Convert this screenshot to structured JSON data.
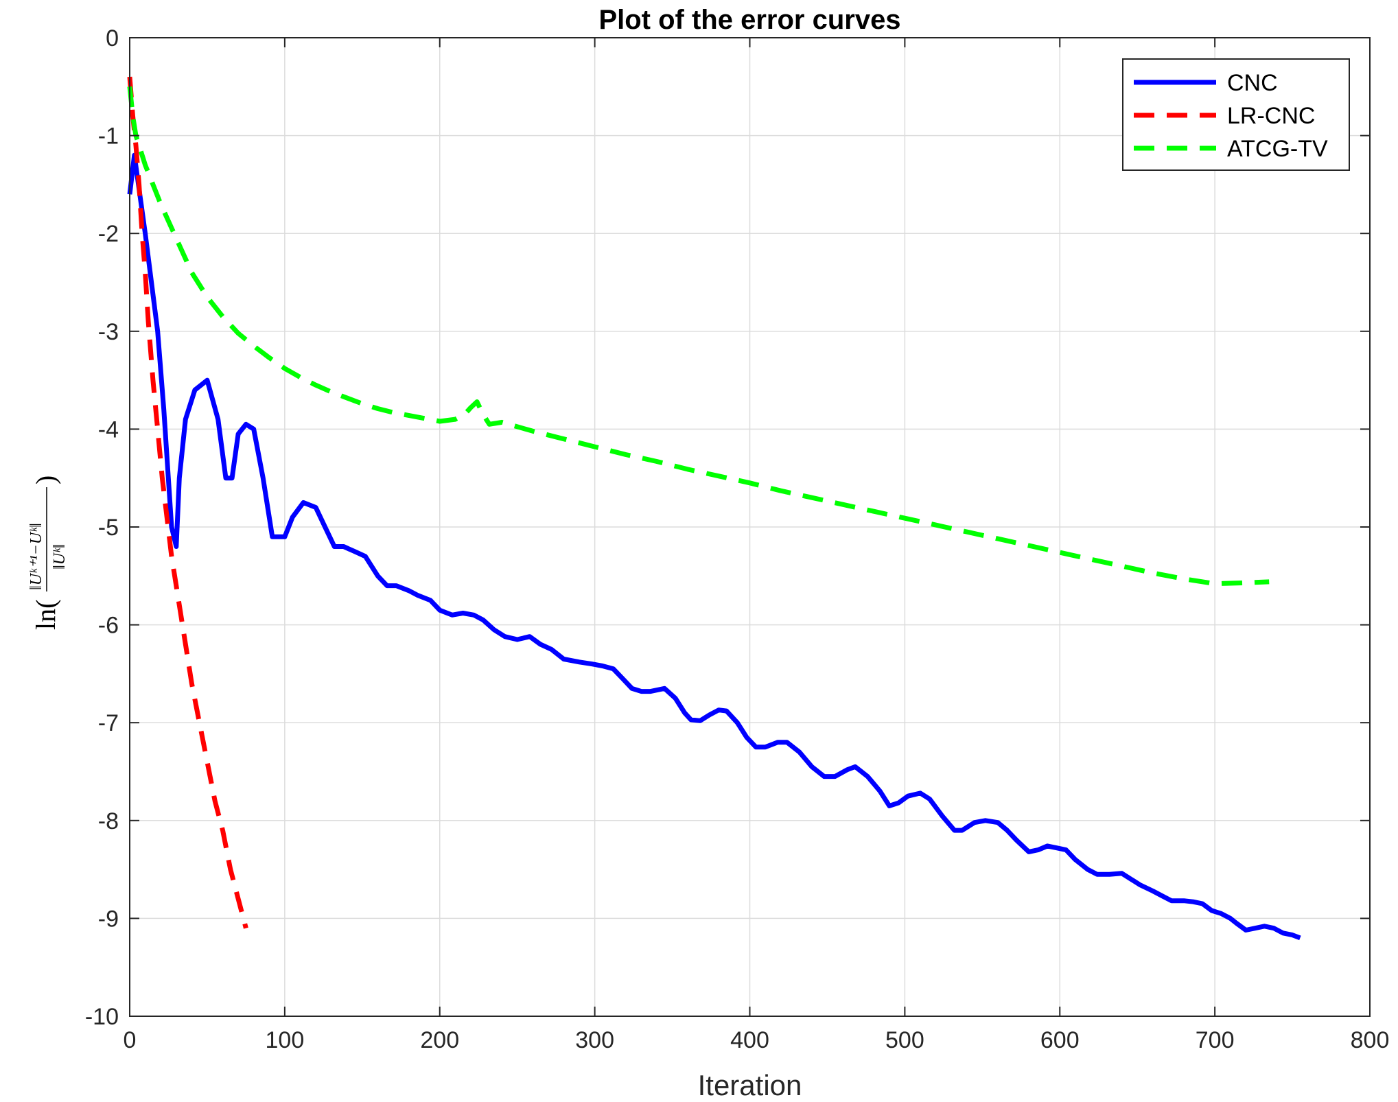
{
  "chart_data": {
    "type": "line",
    "title": "Plot of the error curves",
    "xlabel": "Iteration",
    "ylabel": "ln(‖U^{k+1}−U^k‖_F / ‖U^k‖_F)",
    "xlim": [
      0,
      800
    ],
    "ylim": [
      -10,
      0
    ],
    "xticks": [
      0,
      100,
      200,
      300,
      400,
      500,
      600,
      700,
      800
    ],
    "yticks": [
      0,
      -1,
      -2,
      -3,
      -4,
      -5,
      -6,
      -7,
      -8,
      -9,
      -10
    ],
    "grid": true,
    "legend_position": "top-right",
    "series": [
      {
        "name": "CNC",
        "color": "#0000ff",
        "style": "solid",
        "x": [
          0,
          3,
          10,
          18,
          22,
          27,
          30,
          32,
          36,
          42,
          50,
          57,
          62,
          66,
          70,
          75,
          80,
          86,
          92,
          100,
          105,
          112,
          120,
          126,
          132,
          138,
          145,
          152,
          160,
          166,
          172,
          180,
          186,
          194,
          200,
          208,
          215,
          222,
          228,
          235,
          242,
          250,
          258,
          265,
          272,
          280,
          290,
          298,
          305,
          312,
          318,
          324,
          330,
          336,
          345,
          352,
          358,
          362,
          368,
          374,
          380,
          385,
          392,
          398,
          404,
          410,
          418,
          424,
          432,
          440,
          448,
          455,
          463,
          468,
          476,
          484,
          490,
          496,
          502,
          510,
          516,
          524,
          532,
          537,
          545,
          552,
          560,
          566,
          572,
          580,
          586,
          592,
          598,
          604,
          610,
          618,
          624,
          632,
          640,
          646,
          652,
          660,
          666,
          672,
          680,
          686,
          692,
          698,
          704,
          710,
          714,
          720,
          726,
          732,
          738,
          744,
          750,
          755
        ],
        "y": [
          -1.6,
          -1.2,
          -2.0,
          -3.0,
          -3.8,
          -5.0,
          -5.2,
          -4.5,
          -3.9,
          -3.6,
          -3.5,
          -3.9,
          -4.5,
          -4.5,
          -4.05,
          -3.95,
          -4.0,
          -4.5,
          -5.1,
          -5.1,
          -4.9,
          -4.75,
          -4.8,
          -5.0,
          -5.2,
          -5.2,
          -5.25,
          -5.3,
          -5.5,
          -5.6,
          -5.6,
          -5.65,
          -5.7,
          -5.75,
          -5.85,
          -5.9,
          -5.88,
          -5.9,
          -5.95,
          -6.05,
          -6.12,
          -6.15,
          -6.12,
          -6.2,
          -6.25,
          -6.35,
          -6.38,
          -6.4,
          -6.42,
          -6.45,
          -6.55,
          -6.65,
          -6.68,
          -6.68,
          -6.65,
          -6.75,
          -6.9,
          -6.97,
          -6.98,
          -6.92,
          -6.87,
          -6.88,
          -7.0,
          -7.15,
          -7.25,
          -7.25,
          -7.2,
          -7.2,
          -7.3,
          -7.45,
          -7.55,
          -7.55,
          -7.48,
          -7.45,
          -7.55,
          -7.7,
          -7.85,
          -7.82,
          -7.75,
          -7.72,
          -7.78,
          -7.95,
          -8.1,
          -8.1,
          -8.02,
          -8.0,
          -8.02,
          -8.1,
          -8.2,
          -8.32,
          -8.3,
          -8.26,
          -8.28,
          -8.3,
          -8.4,
          -8.5,
          -8.55,
          -8.55,
          -8.54,
          -8.6,
          -8.66,
          -8.72,
          -8.77,
          -8.82,
          -8.82,
          -8.83,
          -8.85,
          -8.92,
          -8.95,
          -9.0,
          -9.05,
          -9.12,
          -9.1,
          -9.08,
          -9.1,
          -9.15,
          -9.17,
          -9.2
        ]
      },
      {
        "name": "LR-CNC",
        "color": "#ff0000",
        "style": "dashed",
        "x": [
          0,
          2,
          4,
          6,
          8,
          10,
          12,
          15,
          18,
          21,
          24,
          27,
          30,
          35,
          40,
          45,
          50,
          55,
          60,
          65,
          70,
          75
        ],
        "y": [
          -0.4,
          -0.8,
          -1.1,
          -1.5,
          -2.0,
          -2.4,
          -2.9,
          -3.5,
          -4.0,
          -4.5,
          -4.9,
          -5.3,
          -5.6,
          -6.1,
          -6.6,
          -7.0,
          -7.4,
          -7.8,
          -8.1,
          -8.5,
          -8.8,
          -9.1
        ]
      },
      {
        "name": "ATCG-TV",
        "color": "#00ff00",
        "style": "dashed",
        "x": [
          0,
          2,
          4,
          6,
          10,
          15,
          20,
          30,
          40,
          50,
          60,
          70,
          80,
          90,
          100,
          110,
          120,
          130,
          140,
          150,
          160,
          170,
          180,
          190,
          200,
          210,
          216,
          220,
          224,
          228,
          232,
          240,
          260,
          280,
          300,
          320,
          340,
          360,
          380,
          400,
          420,
          440,
          460,
          480,
          500,
          520,
          540,
          560,
          580,
          600,
          620,
          640,
          660,
          680,
          700,
          720,
          735
        ],
        "y": [
          -0.5,
          -0.8,
          -1.0,
          -1.1,
          -1.3,
          -1.5,
          -1.7,
          -2.05,
          -2.4,
          -2.65,
          -2.85,
          -3.02,
          -3.15,
          -3.27,
          -3.38,
          -3.47,
          -3.55,
          -3.62,
          -3.68,
          -3.74,
          -3.79,
          -3.83,
          -3.86,
          -3.89,
          -3.92,
          -3.9,
          -3.85,
          -3.78,
          -3.72,
          -3.85,
          -3.95,
          -3.93,
          -4.02,
          -4.1,
          -4.18,
          -4.26,
          -4.33,
          -4.41,
          -4.48,
          -4.55,
          -4.63,
          -4.7,
          -4.77,
          -4.84,
          -4.91,
          -4.98,
          -5.05,
          -5.12,
          -5.19,
          -5.26,
          -5.33,
          -5.4,
          -5.47,
          -5.53,
          -5.58,
          -5.57,
          -5.56
        ]
      }
    ]
  }
}
